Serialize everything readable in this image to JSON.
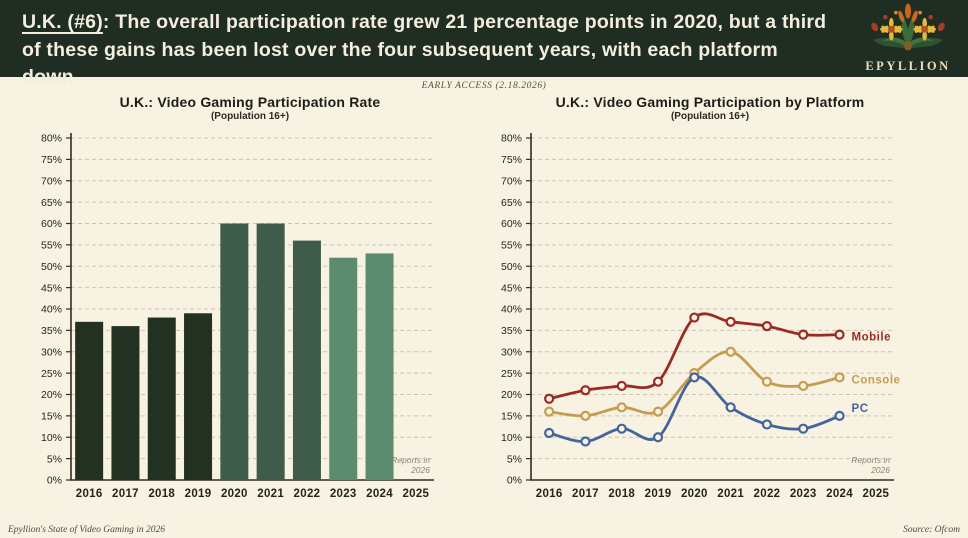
{
  "header": {
    "title_prefix": "U.K. (#6)",
    "title_rest": ": The overall participation rate grew 21 percentage points in 2020, but a third of these gains has been lost over the four subsequent years, with each platform down",
    "brand": "EPYLLION"
  },
  "early_access_label": "EARLY ACCESS (2.18.2026)",
  "footer": {
    "left": "Epyllion's State of Video Gaming in 2026",
    "right": "Source: Ofcom"
  },
  "colors": {
    "background": "#f8f2e3",
    "header_bg": "#202d23",
    "grid": "#ccc5b2",
    "axis": "#2e2e27",
    "tick_text": "#24241e",
    "annotation_text": "#8b8577",
    "marker_fill": "#f8f2e3"
  },
  "chart_data": [
    {
      "type": "bar",
      "title": "U.K.: Video Gaming Participation Rate",
      "subtitle": "(Population 16+)",
      "categories": [
        "2016",
        "2017",
        "2018",
        "2019",
        "2020",
        "2021",
        "2022",
        "2023",
        "2024",
        "2025"
      ],
      "values": [
        37,
        36,
        38,
        39,
        60,
        60,
        56,
        52,
        53,
        null
      ],
      "bar_colors": [
        "#223122",
        "#223122",
        "#223122",
        "#223122",
        "#3e5c49",
        "#3e5c49",
        "#3e5c49",
        "#5d8b6f",
        "#5d8b6f",
        null
      ],
      "ylim": [
        0,
        80
      ],
      "ytick_step": 5,
      "ytick_suffix": "%",
      "grid": true,
      "annotation": [
        "Reports in",
        "2026"
      ]
    },
    {
      "type": "line",
      "title": "U.K.: Video Gaming Participation by Platform",
      "subtitle": "(Population 16+)",
      "categories": [
        "2016",
        "2017",
        "2018",
        "2019",
        "2020",
        "2021",
        "2022",
        "2023",
        "2024",
        "2025"
      ],
      "series": [
        {
          "name": "Mobile",
          "color": "#9c2a22",
          "values": [
            19,
            21,
            22,
            23,
            38,
            37,
            36,
            34,
            34
          ],
          "label_dy": 2
        },
        {
          "name": "Console",
          "color": "#c49d50",
          "values": [
            16,
            15,
            17,
            16,
            25,
            30,
            23,
            22,
            24
          ],
          "label_dy": 2
        },
        {
          "name": "PC",
          "color": "#44659c",
          "values": [
            11,
            9,
            12,
            10,
            24,
            17,
            13,
            12,
            15
          ],
          "label_dy": -8
        }
      ],
      "ylim": [
        0,
        80
      ],
      "ytick_step": 5,
      "ytick_suffix": "%",
      "grid": true,
      "legend_position": "right-of-line-end",
      "annotation": [
        "Reports in",
        "2026"
      ]
    }
  ]
}
